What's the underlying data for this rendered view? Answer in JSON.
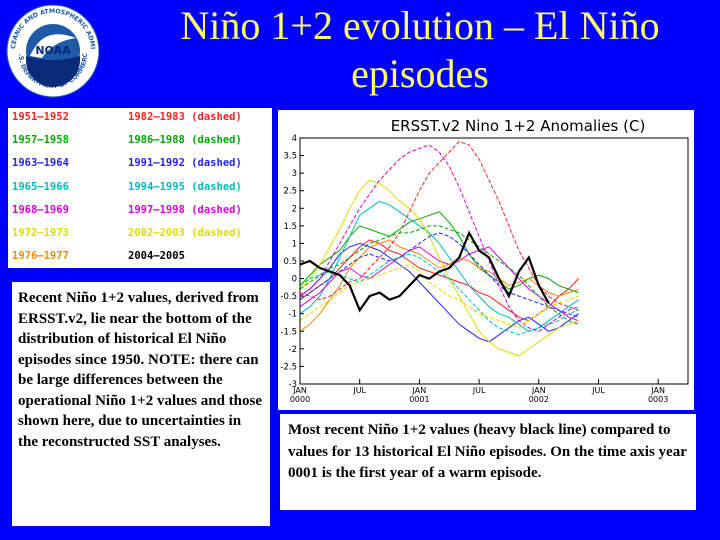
{
  "slide": {
    "title": "Niño 1+2 evolution – El Niño episodes",
    "left_text": "Recent Niño 1+2 values, derived from ERSST.v2, lie near the bottom of the distribution of historical El Niño episodes since 1950. NOTE: there can be large differences between the operational Niño 1+2 values and those shown here, due to uncertainties in the reconstructed SST analyses.",
    "caption": "Most recent Niño 1+2 values (heavy black line) compared to values for 13 historical El Niño episodes. On the time axis year 0001 is the first year of a warm episode."
  },
  "logo": {
    "text_top": "NATIONAL OCEANIC AND ATMOSPHERIC ADMINISTRATION",
    "text_bottom": "U.S. DEPARTMENT OF COMMERCE",
    "center": "NOAA",
    "colors": {
      "ring": "#FFFFFF",
      "sky": "#1E5AA8",
      "sea": "#0A2A7A",
      "bird": "#FFFFFF"
    }
  },
  "legend": {
    "entries": [
      {
        "label": "1951–1952",
        "color": "#FF2222"
      },
      {
        "label": "1957–1958",
        "color": "#00AA00"
      },
      {
        "label": "1963–1964",
        "color": "#2222FF"
      },
      {
        "label": "1965–1966",
        "color": "#00BBBB"
      },
      {
        "label": "1968–1969",
        "color": "#DD00DD"
      },
      {
        "label": "1972–1973",
        "color": "#DDDD00"
      },
      {
        "label": "1976–1977",
        "color": "#FF8800"
      },
      {
        "label": "1982–1983 (dashed)",
        "color": "#FF2222"
      },
      {
        "label": "1986–1988 (dashed)",
        "color": "#00AA00"
      },
      {
        "label": "1991–1992 (dashed)",
        "color": "#2222FF"
      },
      {
        "label": "1994–1995 (dashed)",
        "color": "#00BBBB"
      },
      {
        "label": "1997–1998 (dashed)",
        "color": "#DD00DD"
      },
      {
        "label": "2002–2003 (dashed)",
        "color": "#DDDD00"
      },
      {
        "label": "2004–2005",
        "color": "#000000"
      }
    ]
  },
  "chart_data": {
    "type": "line",
    "title": "ERSST.v2 Nino 1+2 Anomalies (C)",
    "xlabel": "",
    "ylabel": "",
    "ylim": [
      -3,
      4
    ],
    "yticks": [
      "4",
      "3.5",
      "3",
      "2.5",
      "2",
      "1.5",
      "1",
      "0.5",
      "0",
      "-0.5",
      "-1",
      "-1.5",
      "-2",
      "-2.5",
      "-3"
    ],
    "xticks": [
      {
        "month": 0,
        "label1": "JAN",
        "label2": "0000"
      },
      {
        "month": 6,
        "label1": "JUL",
        "label2": ""
      },
      {
        "month": 12,
        "label1": "JAN",
        "label2": "0001"
      },
      {
        "month": 18,
        "label1": "JUL",
        "label2": ""
      },
      {
        "month": 24,
        "label1": "JAN",
        "label2": "0002"
      },
      {
        "month": 30,
        "label1": "JUL",
        "label2": ""
      },
      {
        "month": 36,
        "label1": "JAN",
        "label2": "0003"
      }
    ],
    "xlim": [
      0,
      39
    ],
    "grid": false,
    "legend": "top-left, outside plot",
    "series": [
      {
        "name": "1951–1952",
        "color": "#FF2222",
        "dashed": false,
        "values": [
          -0.6,
          -0.4,
          -0.2,
          0.0,
          0.3,
          0.6,
          0.9,
          1.1,
          1.0,
          0.8,
          0.7,
          0.5,
          0.3,
          0.2,
          0.1,
          0.0,
          -0.1,
          -0.2,
          -0.4,
          -0.5,
          -0.7,
          -0.9,
          -1.1,
          -1.2,
          -1.0,
          -0.8,
          -0.5,
          -0.3,
          0.0
        ]
      },
      {
        "name": "1957–1958",
        "color": "#00AA00",
        "dashed": false,
        "values": [
          -0.2,
          0.1,
          0.4,
          0.6,
          0.8,
          1.2,
          1.5,
          1.4,
          1.3,
          1.2,
          1.4,
          1.6,
          1.7,
          1.8,
          1.9,
          1.6,
          1.2,
          0.7,
          0.3,
          0.1,
          -0.1,
          -0.3,
          -0.2,
          0.0,
          0.1,
          0.0,
          -0.2,
          -0.3,
          -0.4
        ]
      },
      {
        "name": "1963–1964",
        "color": "#2222FF",
        "dashed": false,
        "values": [
          -0.5,
          -0.3,
          0.0,
          0.3,
          0.7,
          0.9,
          1.0,
          0.9,
          0.8,
          0.6,
          0.4,
          0.2,
          -0.1,
          -0.4,
          -0.7,
          -1.0,
          -1.3,
          -1.5,
          -1.7,
          -1.8,
          -1.6,
          -1.4,
          -1.2,
          -1.1,
          -1.3,
          -1.5,
          -1.4,
          -1.2,
          -1.0
        ]
      },
      {
        "name": "1965–1966",
        "color": "#00BBBB",
        "dashed": false,
        "values": [
          -1.0,
          -0.8,
          -0.5,
          0.0,
          0.6,
          1.2,
          1.8,
          2.0,
          2.2,
          2.1,
          1.9,
          1.7,
          1.5,
          1.3,
          1.0,
          0.6,
          0.2,
          -0.2,
          -0.5,
          -0.8,
          -1.0,
          -1.1,
          -1.3,
          -1.5,
          -1.4,
          -1.2,
          -1.0,
          -0.8,
          -0.6
        ]
      },
      {
        "name": "1968–1969",
        "color": "#DD00DD",
        "dashed": false,
        "values": [
          -0.8,
          -0.6,
          -0.4,
          -0.1,
          0.2,
          0.3,
          0.1,
          0.0,
          0.2,
          0.4,
          0.6,
          0.8,
          0.9,
          0.7,
          0.5,
          0.4,
          0.5,
          0.7,
          0.8,
          0.9,
          0.6,
          0.3,
          0.0,
          -0.3,
          -0.5,
          -0.7,
          -0.9,
          -1.1,
          -1.2
        ]
      },
      {
        "name": "1972–1973",
        "color": "#DDDD00",
        "dashed": false,
        "values": [
          -0.3,
          0.0,
          0.4,
          0.9,
          1.4,
          2.0,
          2.5,
          2.8,
          2.7,
          2.5,
          2.2,
          2.0,
          1.7,
          1.2,
          0.6,
          0.0,
          -0.5,
          -1.0,
          -1.5,
          -1.8,
          -2.0,
          -2.1,
          -2.2,
          -2.0,
          -1.8,
          -1.6,
          -1.4,
          -1.3,
          -1.2
        ]
      },
      {
        "name": "1976–1977",
        "color": "#FF8800",
        "dashed": false,
        "values": [
          -1.5,
          -1.3,
          -1.0,
          -0.6,
          -0.2,
          0.3,
          0.6,
          0.9,
          1.0,
          1.1,
          0.9,
          0.8,
          0.7,
          0.5,
          0.3,
          0.4,
          0.6,
          0.5,
          0.3,
          0.2,
          0.0,
          -0.2,
          -0.1,
          0.0,
          -0.2,
          -0.4,
          -0.5,
          -0.4,
          -0.3
        ]
      },
      {
        "name": "1982–1983 (dashed)",
        "color": "#FF2222",
        "dashed": true,
        "values": [
          -0.4,
          -0.5,
          -0.6,
          -0.5,
          -0.3,
          -0.1,
          0.0,
          0.3,
          0.6,
          0.9,
          1.3,
          1.9,
          2.5,
          3.0,
          3.3,
          3.6,
          3.9,
          3.8,
          3.4,
          2.8,
          2.2,
          1.5,
          0.8,
          0.3,
          -0.2,
          -0.5,
          -0.7,
          -0.8,
          -0.9
        ]
      },
      {
        "name": "1986–1988 (dashed)",
        "color": "#00AA00",
        "dashed": true,
        "values": [
          -0.3,
          -0.1,
          0.1,
          0.3,
          0.4,
          0.6,
          0.8,
          1.0,
          1.1,
          1.2,
          1.3,
          1.3,
          1.4,
          1.5,
          1.5,
          1.4,
          1.3,
          1.1,
          0.9,
          0.7,
          0.5,
          0.3,
          0.1,
          -0.2,
          -0.5,
          -0.8,
          -1.0,
          -1.2,
          -1.3
        ]
      },
      {
        "name": "1991–1992 (dashed)",
        "color": "#2222FF",
        "dashed": true,
        "values": [
          -0.6,
          -0.4,
          -0.2,
          0.0,
          0.2,
          0.4,
          0.6,
          0.7,
          0.6,
          0.5,
          0.6,
          0.8,
          1.0,
          1.2,
          1.3,
          1.2,
          1.0,
          0.7,
          0.4,
          0.1,
          -0.2,
          -0.4,
          -0.5,
          -0.6,
          -0.7,
          -0.8,
          -0.9,
          -1.0,
          -1.1
        ]
      },
      {
        "name": "1994–1995 (dashed)",
        "color": "#00BBBB",
        "dashed": true,
        "values": [
          -0.2,
          0.0,
          0.1,
          0.2,
          0.1,
          0.0,
          -0.1,
          0.1,
          0.3,
          0.5,
          0.6,
          0.7,
          0.6,
          0.4,
          0.2,
          0.0,
          -0.3,
          -0.6,
          -0.9,
          -1.2,
          -1.4,
          -1.5,
          -1.6,
          -1.5,
          -1.4,
          -1.3,
          -1.2,
          -1.0,
          -0.9
        ]
      },
      {
        "name": "1997–1998 (dashed)",
        "color": "#DD00DD",
        "dashed": true,
        "values": [
          -0.5,
          -0.3,
          0.0,
          0.5,
          1.0,
          1.5,
          2.0,
          2.4,
          2.8,
          3.1,
          3.4,
          3.6,
          3.7,
          3.8,
          3.6,
          3.2,
          2.6,
          1.9,
          1.2,
          0.5,
          -0.2,
          -0.8,
          -1.2,
          -1.4,
          -1.5,
          -1.3,
          -1.1,
          -0.9,
          -0.8
        ]
      },
      {
        "name": "2002–2003 (dashed)",
        "color": "#DDDD00",
        "dashed": true,
        "values": [
          -1.2,
          -1.0,
          -0.8,
          -0.6,
          -0.4,
          -0.2,
          -0.1,
          0.0,
          0.1,
          0.2,
          0.3,
          0.4,
          0.2,
          -0.1,
          -0.3,
          -0.5,
          -0.6,
          -0.8,
          -1.0,
          -1.1,
          -1.2,
          -1.3,
          -1.4,
          -1.2,
          -1.0,
          -0.8,
          -0.7,
          -0.6,
          -0.5
        ]
      },
      {
        "name": "2004–2005",
        "color": "#000000",
        "dashed": false,
        "bold": true,
        "values": [
          0.4,
          0.5,
          0.3,
          0.2,
          0.1,
          -0.2,
          -0.9,
          -0.5,
          -0.4,
          -0.6,
          -0.5,
          -0.2,
          0.1,
          0.0,
          0.2,
          0.3,
          0.6,
          1.3,
          0.8,
          0.6,
          0.0,
          -0.5,
          0.2,
          0.6,
          -0.2,
          -0.7
        ]
      }
    ]
  }
}
